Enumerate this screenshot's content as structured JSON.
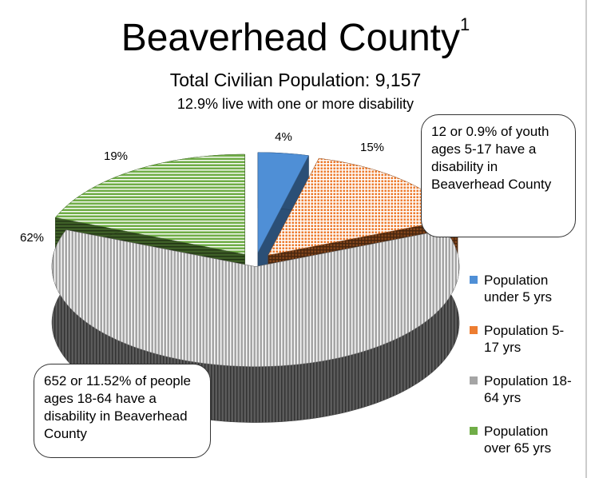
{
  "chart_data": {
    "type": "pie3d",
    "title": "Beaverhead County",
    "title_superscript": "1",
    "subtitles": [
      "Total Civilian Population: 9,157",
      "12.9% live with one or more disability"
    ],
    "categories": [
      "Population under 5 yrs",
      "Population 5-17 yrs",
      "Population 18-64 yrs",
      "Population over 65 yrs"
    ],
    "values": [
      4,
      15,
      62,
      19
    ],
    "value_labels": [
      "4%",
      "15%",
      "62%",
      "19%"
    ],
    "colors": [
      "#4f8fd6",
      "#ed7d31",
      "#a5a5a5",
      "#70ad47"
    ],
    "fills": [
      "solid",
      "crosshatch",
      "vertical",
      "horizontal"
    ],
    "legend": "right",
    "annotations": [
      "12 or 0.9% of youth ages 5-17 have a disability in Beaverhead County",
      "652 or 11.52% of people ages 18-64 have a disability in Beaverhead County"
    ]
  }
}
